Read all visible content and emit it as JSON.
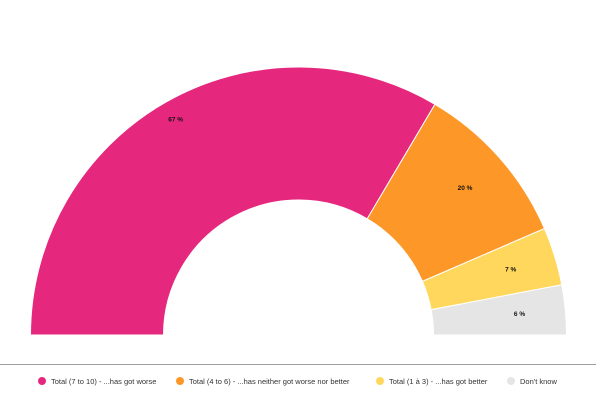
{
  "chart_data": {
    "type": "pie",
    "variant": "half-donut",
    "categories": [
      "Total (7 to 10) - ...has got worse",
      "Total (4 to 6) - ...has neither got worse nor better",
      "Total (1 à 3) - ...has got better",
      "Don't know"
    ],
    "values": [
      67,
      20,
      7,
      6
    ],
    "data_labels": [
      "67 %",
      "20 %",
      "7 %",
      "6 %"
    ],
    "colors": [
      "#e5287d",
      "#fd9727",
      "#ffd75c",
      "#e5e5e5"
    ],
    "legend_position": "bottom"
  }
}
